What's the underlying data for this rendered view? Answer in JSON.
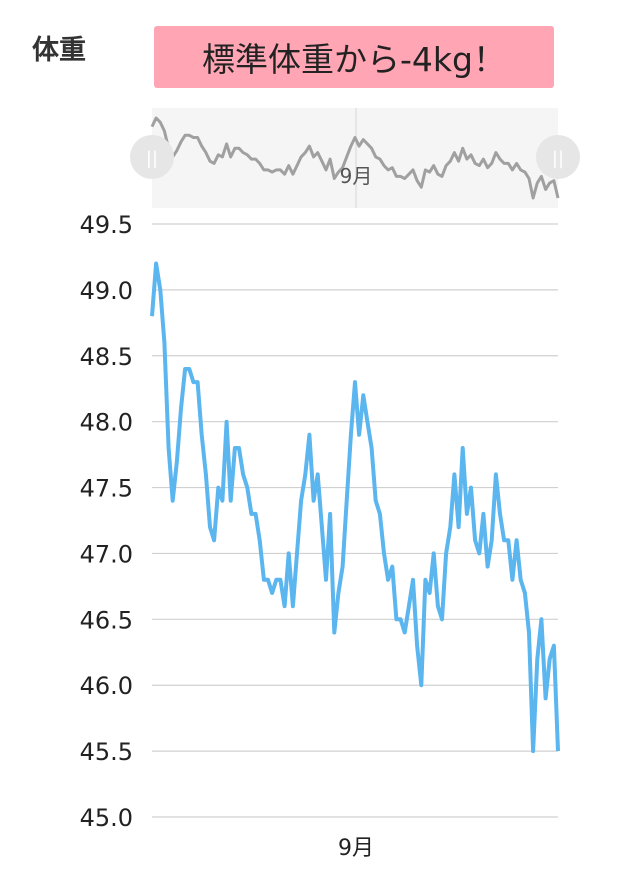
{
  "header": {
    "title": "体重",
    "banner": "標準体重から-4kg！"
  },
  "navigator": {
    "month_label": "9月",
    "handle_glyph": "||"
  },
  "colors": {
    "line": "#5bb5ef",
    "navigator_line": "#a0a0a0",
    "banner": "#ffa5b4",
    "grid": "#d0d0d0"
  },
  "chart_data": {
    "type": "line",
    "title": "",
    "xlabel": "",
    "ylabel": "",
    "ylim": [
      45.0,
      49.5
    ],
    "yticks": [
      "49.5",
      "49.0",
      "48.5",
      "48.0",
      "47.5",
      "47.0",
      "46.5",
      "46.0",
      "45.5",
      "45.0"
    ],
    "xtick_label": "9月",
    "grid": true,
    "series": [
      {
        "values": [
          48.8,
          49.2,
          49.0,
          48.6,
          47.8,
          47.4,
          47.7,
          48.1,
          48.4,
          48.4,
          48.3,
          48.3,
          47.9,
          47.6,
          47.2,
          47.1,
          47.5,
          47.4,
          48.0,
          47.4,
          47.8,
          47.8,
          47.6,
          47.5,
          47.3,
          47.3,
          47.1,
          46.8,
          46.8,
          46.7,
          46.8,
          46.8,
          46.6,
          47.0,
          46.6,
          47.0,
          47.4,
          47.6,
          47.9,
          47.4,
          47.6,
          47.2,
          46.8,
          47.3,
          46.4,
          46.7,
          46.9,
          47.4,
          47.9,
          48.3,
          47.9,
          48.2,
          48.0,
          47.8,
          47.4,
          47.3,
          47.0,
          46.8,
          46.9,
          46.5,
          46.5,
          46.4,
          46.6,
          46.8,
          46.3,
          46.0,
          46.8,
          46.7,
          47.0,
          46.6,
          46.5,
          47.0,
          47.2,
          47.6,
          47.2,
          47.8,
          47.3,
          47.5,
          47.1,
          47.0,
          47.3,
          46.9,
          47.1,
          47.6,
          47.3,
          47.1,
          47.1,
          46.8,
          47.1,
          46.8,
          46.7,
          46.4,
          45.5,
          46.2,
          46.5,
          45.9,
          46.2,
          46.3,
          45.5
        ]
      }
    ]
  }
}
